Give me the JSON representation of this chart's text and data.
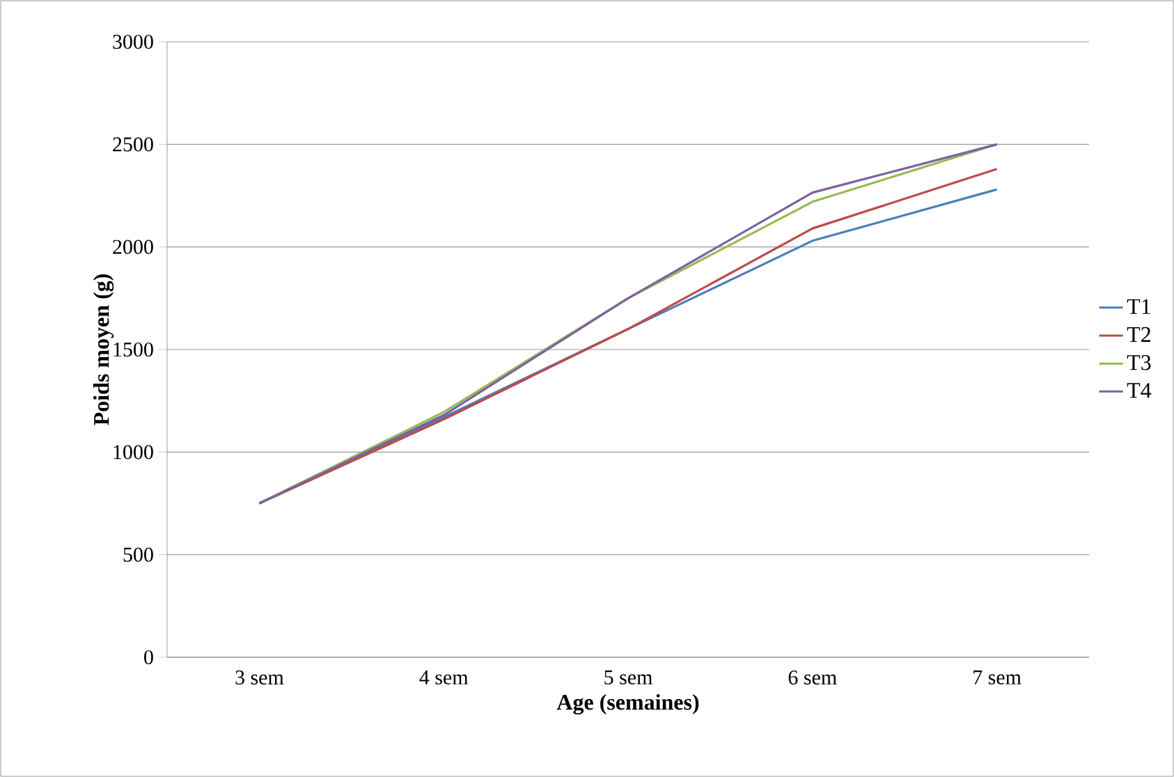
{
  "chart_data": {
    "type": "line",
    "xlabel": "Age (semaines)",
    "ylabel": "Poids moyen (g)",
    "categories": [
      "3 sem",
      "4 sem",
      "5 sem",
      "6 sem",
      "7 sem"
    ],
    "series": [
      {
        "name": "T1",
        "color": "#4a7ebb",
        "values": [
          750,
          1170,
          1600,
          2030,
          2280
        ]
      },
      {
        "name": "T2",
        "color": "#be4b48",
        "values": [
          750,
          1160,
          1600,
          2090,
          2380
        ]
      },
      {
        "name": "T3",
        "color": "#98b954",
        "values": [
          750,
          1195,
          1750,
          2220,
          2500
        ]
      },
      {
        "name": "T4",
        "color": "#7d60a0",
        "values": [
          750,
          1180,
          1750,
          2265,
          2500
        ]
      }
    ],
    "ylim": [
      0,
      3000
    ],
    "yticks": [
      0,
      500,
      1000,
      1500,
      2000,
      2500,
      3000
    ],
    "grid": "y",
    "legend": "right",
    "marker": "none",
    "line_style": "solid"
  }
}
